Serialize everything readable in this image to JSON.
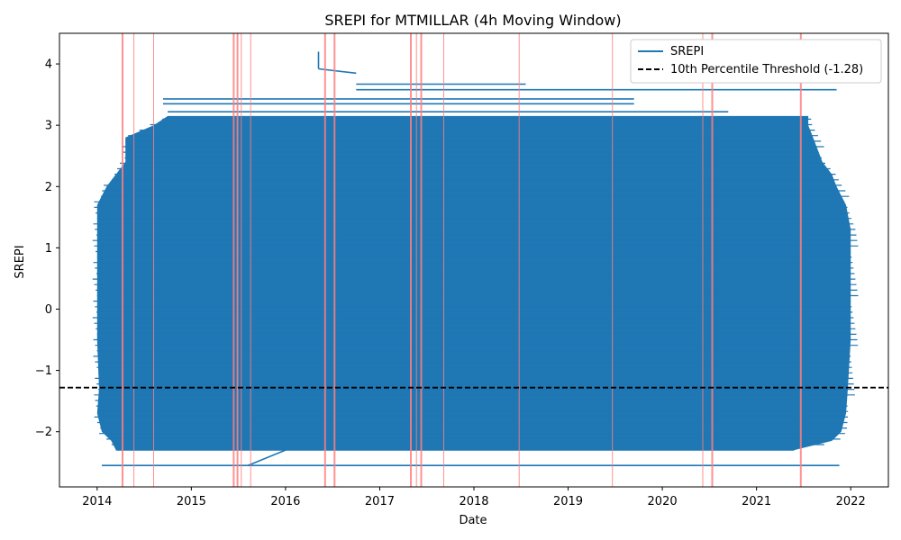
{
  "chart_data": {
    "type": "line",
    "title": "SREPI for MTMILLAR (4h Moving Window)",
    "xlabel": "Date",
    "ylabel": "SREPI",
    "xlim": [
      2013.6,
      2022.4
    ],
    "ylim": [
      -2.9,
      4.5
    ],
    "x_ticks": [
      2014,
      2015,
      2016,
      2017,
      2018,
      2019,
      2020,
      2021,
      2022
    ],
    "x_tick_labels": [
      "2014",
      "2015",
      "2016",
      "2017",
      "2018",
      "2019",
      "2020",
      "2021",
      "2022"
    ],
    "y_ticks": [
      -2,
      -1,
      0,
      1,
      2,
      3,
      4
    ],
    "y_tick_labels": [
      "−2",
      "−1",
      "0",
      "1",
      "2",
      "3",
      "4"
    ],
    "grid": false,
    "legend_position": "top-right",
    "series": [
      {
        "name": "SREPI",
        "color": "#1f77b4",
        "segments": [
          {
            "x_start": 2014.05,
            "x_end": 2021.88,
            "y": -2.55
          },
          {
            "x_start": 2016.35,
            "x_end": 2016.35,
            "y_from": 4.2,
            "y_to": 3.92
          },
          {
            "x_start": 2016.35,
            "x_end": 2016.75,
            "y_from": 3.92,
            "y_to": 3.85
          },
          {
            "x_start": 2016.75,
            "x_end": 2018.55,
            "y": 3.67
          },
          {
            "x_start": 2016.75,
            "x_end": 2021.85,
            "y": 3.58
          },
          {
            "x_start": 2014.7,
            "x_end": 2019.7,
            "y": 3.43
          },
          {
            "x_start": 2014.7,
            "x_end": 2019.7,
            "y": 3.35
          },
          {
            "x_start": 2014.75,
            "x_end": 2020.7,
            "y": 3.22
          },
          {
            "x_start": 2015.6,
            "x_end": 2016.0,
            "y_from": -2.55,
            "y_to": -2.3
          }
        ],
        "band_envelope": [
          {
            "y": 3.15,
            "x_left": 2014.75,
            "x_right": 2021.55
          },
          {
            "y": 3.0,
            "x_left": 2014.6,
            "x_right": 2021.55
          },
          {
            "y": 2.8,
            "x_left": 2014.3,
            "x_right": 2021.6
          },
          {
            "y": 2.6,
            "x_left": 2014.3,
            "x_right": 2021.65
          },
          {
            "y": 2.4,
            "x_left": 2014.3,
            "x_right": 2021.7
          },
          {
            "y": 2.2,
            "x_left": 2014.2,
            "x_right": 2021.8
          },
          {
            "y": 2.0,
            "x_left": 2014.1,
            "x_right": 2021.85
          },
          {
            "y": 1.7,
            "x_left": 2014.0,
            "x_right": 2021.95
          },
          {
            "y": 1.3,
            "x_left": 2014.0,
            "x_right": 2022.0
          },
          {
            "y": 0.5,
            "x_left": 2014.0,
            "x_right": 2022.0
          },
          {
            "y": -0.5,
            "x_left": 2014.0,
            "x_right": 2022.0
          },
          {
            "y": -1.3,
            "x_left": 2014.02,
            "x_right": 2021.97
          },
          {
            "y": -1.7,
            "x_left": 2014.0,
            "x_right": 2021.95
          },
          {
            "y": -2.0,
            "x_left": 2014.05,
            "x_right": 2021.9
          },
          {
            "y": -2.15,
            "x_left": 2014.15,
            "x_right": 2021.8
          },
          {
            "y": -2.3,
            "x_left": 2014.2,
            "x_right": 2021.4
          }
        ]
      },
      {
        "name": "10th Percentile Threshold (-1.28)",
        "color": "#000000",
        "style": "dashed",
        "y": -1.28
      }
    ],
    "red_vertical_lines": [
      {
        "x": 2014.27,
        "width": 2
      },
      {
        "x": 2014.39,
        "width": 1
      },
      {
        "x": 2014.6,
        "width": 1
      },
      {
        "x": 2015.45,
        "width": 2
      },
      {
        "x": 2015.49,
        "width": 2
      },
      {
        "x": 2015.53,
        "width": 1
      },
      {
        "x": 2015.63,
        "width": 1
      },
      {
        "x": 2016.42,
        "width": 2
      },
      {
        "x": 2016.52,
        "width": 2
      },
      {
        "x": 2017.33,
        "width": 2
      },
      {
        "x": 2017.39,
        "width": 1
      },
      {
        "x": 2017.44,
        "width": 2
      },
      {
        "x": 2017.68,
        "width": 1
      },
      {
        "x": 2018.48,
        "width": 1
      },
      {
        "x": 2019.47,
        "width": 1
      },
      {
        "x": 2020.43,
        "width": 1
      },
      {
        "x": 2020.53,
        "width": 2
      },
      {
        "x": 2021.47,
        "width": 2
      }
    ],
    "red_line_color": "#ff7f7f"
  }
}
